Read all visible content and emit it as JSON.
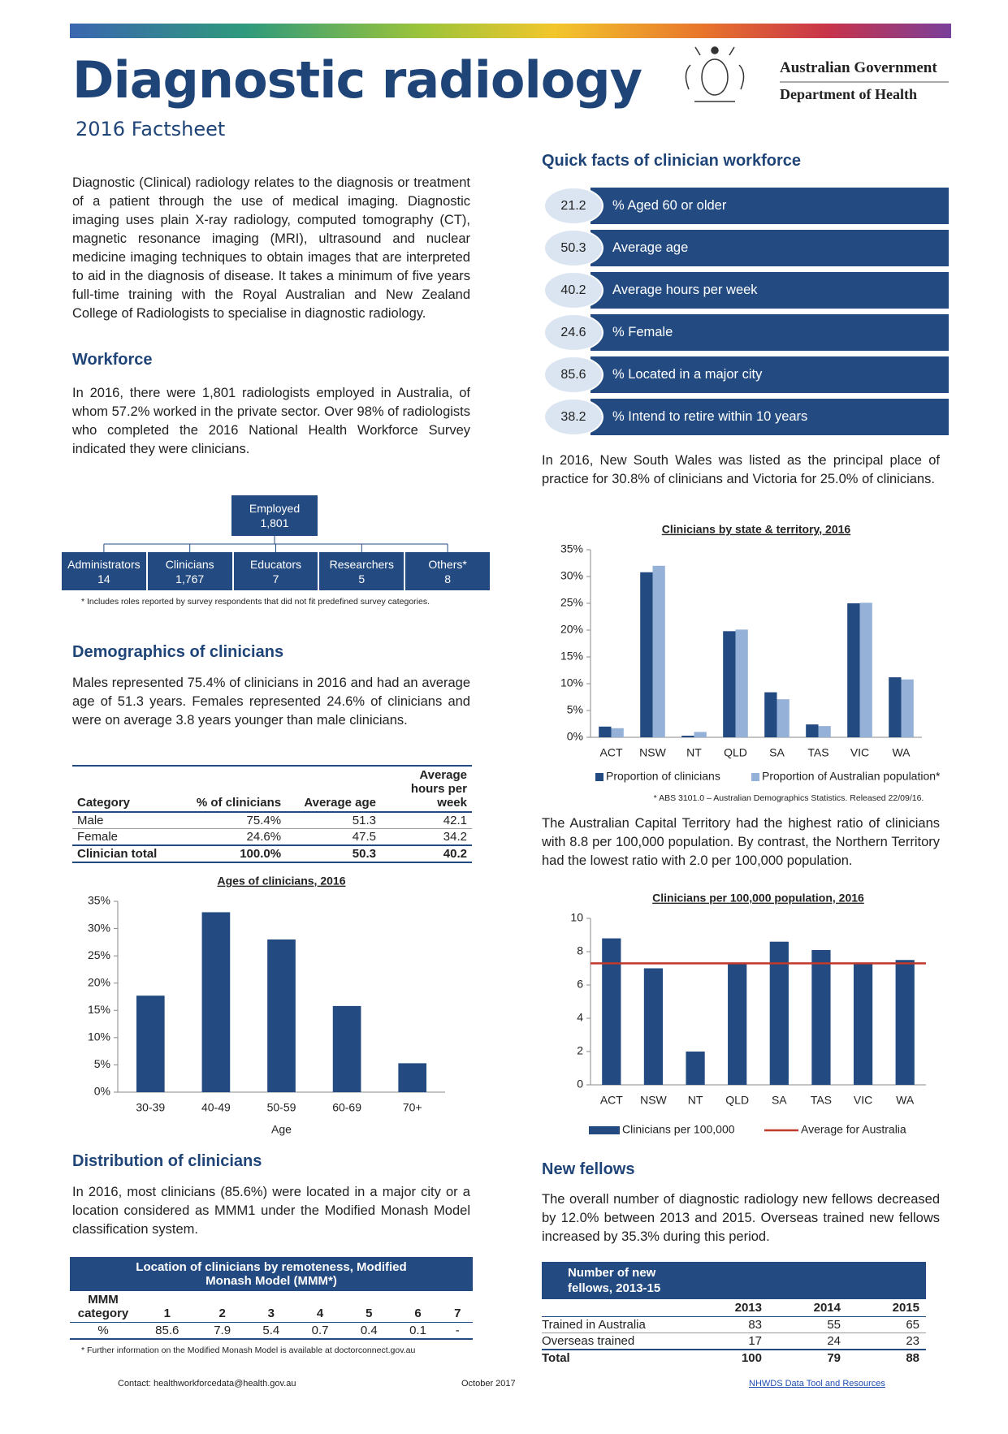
{
  "header": {
    "title": "Diagnostic radiology",
    "subtitle": "2016 Factsheet",
    "government": "Australian Government",
    "department": "Department of Health"
  },
  "intro": "Diagnostic (Clinical) radiology relates to the diagnosis or treatment of a patient through the use of medical imaging. Diagnostic imaging uses plain X-ray radiology, computed tomography (CT), magnetic resonance imaging (MRI), ultrasound and nuclear medicine imaging techniques to obtain images that are interpreted to aid in the diagnosis of disease.  It takes a minimum of five years full-time training with the Royal Australian and New Zealand College of Radiologists to specialise in diagnostic radiology.",
  "workforce": {
    "heading": "Workforce",
    "text": "In 2016, there were 1,801 radiologists employed in Australia, of whom 57.2% worked in the private sector.  Over 98% of radiologists who completed the 2016 National Health Workforce Survey indicated they were clinicians."
  },
  "org_chart": {
    "employed": {
      "label": "Employed",
      "value": "1,801"
    },
    "roles": [
      {
        "label": "Administrators",
        "value": "14"
      },
      {
        "label": "Clinicians",
        "value": "1,767"
      },
      {
        "label": "Educators",
        "value": "7"
      },
      {
        "label": "Researchers",
        "value": "5"
      },
      {
        "label": "Others*",
        "value": "8"
      }
    ],
    "footnote": "*  Includes roles reported by survey respondents that did not fit predefined survey categories."
  },
  "demographics": {
    "heading": "Demographics of clinicians",
    "text": "Males represented 75.4% of clinicians in 2016 and had an average age of 51.3 years.  Females represented 24.6% of clinicians and were on average 3.8 years younger than male clinicians.",
    "table": {
      "columns": [
        "Category",
        "% of clinicians",
        "Average age",
        "Average hours per week"
      ],
      "rows": [
        [
          "Male",
          "75.4%",
          "51.3",
          "42.1"
        ],
        [
          "Female",
          "24.6%",
          "47.5",
          "34.2"
        ],
        [
          "Clinician total",
          "100.0%",
          "50.3",
          "40.2"
        ]
      ]
    }
  },
  "distribution": {
    "heading": "Distribution of clinicians",
    "text": "In 2016, most clinicians (85.6%) were located in a major city or a location considered as MMM1 under the Modified Monash Model classification system.",
    "table": {
      "title": "Location of clinicians by remoteness, Modified Monash Model (MMM*)",
      "columns": [
        "MMM category",
        "1",
        "2",
        "3",
        "4",
        "5",
        "6",
        "7"
      ],
      "rows": [
        [
          "%",
          "85.6",
          "7.9",
          "5.4",
          "0.7",
          "0.4",
          "0.1",
          "-"
        ]
      ]
    },
    "footnote": "*  Further information on the Modified Monash Model is available at doctorconnect.gov.au"
  },
  "quick_facts": {
    "heading": "Quick facts of clinician workforce",
    "items": [
      {
        "value": 21.2,
        "label": "% Aged 60 or older"
      },
      {
        "value": 50.3,
        "label": "Average age"
      },
      {
        "value": 40.2,
        "label": "Average hours per week"
      },
      {
        "value": 24.6,
        "label": "% Female"
      },
      {
        "value": 85.6,
        "label": "% Located in a major city"
      },
      {
        "value": 38.2,
        "label": "% Intend to retire within 10 years"
      }
    ]
  },
  "state_text": "In 2016, New South Wales was listed as the principal place of practice for 30.8% of clinicians and Victoria for 25.0% of clinicians.",
  "ratio_text": "The Australian Capital Territory had the highest ratio of clinicians with 8.8 per 100,000 population.  By contrast, the Northern Territory had the lowest ratio with 2.0 per 100,000 population.",
  "new_fellows": {
    "heading": "New fellows",
    "text": "The overall number of diagnostic radiology new fellows decreased by 12.0% between 2013 and 2015.  Overseas trained new fellows increased by 35.3% during this period.",
    "table": {
      "title": "Number of new fellows, 2013-15",
      "columns": [
        2013,
        2014,
        2015
      ],
      "rows": [
        {
          "label": "Trained in Australia",
          "values": [
            83,
            55,
            65
          ]
        },
        {
          "label": "Overseas trained",
          "values": [
            17,
            24,
            23
          ]
        },
        {
          "label": "Total",
          "values": [
            100,
            79,
            88
          ]
        }
      ]
    }
  },
  "footer": {
    "contact": "Contact: healthworkforcedata@health.gov.au",
    "date": "October 2017",
    "link": "NHWDS Data Tool and Resources"
  },
  "chart_data": [
    {
      "type": "bar",
      "title": "Ages of clinicians, 2016",
      "x_label": "Age",
      "categories": [
        "30-39",
        "40-49",
        "50-59",
        "60-69",
        "70+"
      ],
      "values": [
        17.7,
        33.0,
        28.0,
        15.8,
        5.3
      ],
      "color": "#234b82",
      "ylim": [
        0,
        35
      ],
      "yticks": [
        {
          "value": 0,
          "label": "0%"
        },
        {
          "value": 5,
          "label": "5%"
        },
        {
          "value": 10,
          "label": "10%"
        },
        {
          "value": 15,
          "label": "15%"
        },
        {
          "value": 20,
          "label": "20%"
        },
        {
          "value": 25,
          "label": "25%"
        },
        {
          "value": 30,
          "label": "30%"
        },
        {
          "value": 35,
          "label": "35%"
        }
      ]
    },
    {
      "type": "bar",
      "title": "Clinicians by state & territory, 2016",
      "footnote": "* ABS 3101.0 – Australian Demographics Statistics. Released 22/09/16.",
      "categories": [
        "ACT",
        "NSW",
        "NT",
        "QLD",
        "SA",
        "TAS",
        "VIC",
        "WA"
      ],
      "series": [
        {
          "name": "Proportion of clinicians",
          "color": "#234b82",
          "values": [
            2.0,
            30.8,
            0.3,
            19.8,
            8.4,
            2.4,
            25.0,
            11.2
          ]
        },
        {
          "name": "Proportion of Australian population*",
          "color": "#95b1d8",
          "values": [
            1.7,
            32.0,
            1.0,
            20.1,
            7.1,
            2.1,
            25.1,
            10.8
          ]
        }
      ],
      "ylim": [
        0,
        35
      ],
      "yticks": [
        {
          "value": 0,
          "label": "0%"
        },
        {
          "value": 5,
          "label": "5%"
        },
        {
          "value": 10,
          "label": "10%"
        },
        {
          "value": 15,
          "label": "15%"
        },
        {
          "value": 20,
          "label": "20%"
        },
        {
          "value": 25,
          "label": "25%"
        },
        {
          "value": 30,
          "label": "30%"
        },
        {
          "value": 35,
          "label": "35%"
        }
      ]
    },
    {
      "type": "bar",
      "title": "Clinicians per 100,000 population, 2016",
      "categories": [
        "ACT",
        "NSW",
        "NT",
        "QLD",
        "SA",
        "TAS",
        "VIC",
        "WA"
      ],
      "series": [
        {
          "name": "Clinicians per 100,000",
          "color": "#234b82",
          "values": [
            8.8,
            7.0,
            2.0,
            7.3,
            8.6,
            8.1,
            7.3,
            7.5
          ]
        }
      ],
      "average": {
        "name": "Average for Australia",
        "value": 7.3,
        "color": "#c0392b"
      },
      "ylim": [
        0,
        10
      ],
      "yticks": [
        0,
        2,
        4,
        6,
        8,
        10
      ]
    }
  ]
}
